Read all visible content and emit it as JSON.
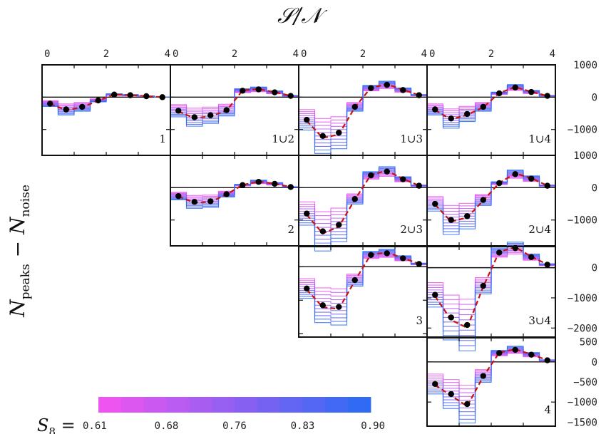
{
  "chart_data": {
    "type": "line",
    "xlabel": "𝒮/𝒩",
    "ylabel": {
      "base": "N",
      "sub1": "peaks",
      "mid": " − N",
      "sub2": "noise"
    },
    "xlim": [
      0,
      4
    ],
    "x_ticks": [
      "0",
      "2",
      "4"
    ],
    "x": [
      0.25,
      0.75,
      1.25,
      1.75,
      2.25,
      2.75,
      3.25,
      3.75
    ],
    "colorbar": {
      "label": "S",
      "label_sub": "8",
      "label_suffix": " =",
      "ticks": [
        "0.61",
        "0.68",
        "0.76",
        "0.83",
        "0.90"
      ],
      "color_min": "#ee55f0",
      "color_max": "#2f6bf4"
    },
    "legend": "none",
    "grid": false,
    "fiducial_color": "#cc1111",
    "data_color": "#000000",
    "panels": [
      {
        "label": "1",
        "row": 0,
        "col": 0,
        "ylim": [
          -1800,
          1000
        ],
        "values": [
          -200,
          -380,
          -300,
          -100,
          80,
          60,
          30,
          0
        ]
      },
      {
        "label": "1∪2",
        "row": 0,
        "col": 1,
        "ylim": [
          -1800,
          1000
        ],
        "values": [
          -420,
          -620,
          -560,
          -400,
          200,
          240,
          150,
          40
        ]
      },
      {
        "label": "1∪3",
        "row": 0,
        "col": 2,
        "ylim": [
          -1800,
          1000
        ],
        "values": [
          -700,
          -1200,
          -1100,
          -300,
          280,
          380,
          220,
          60
        ]
      },
      {
        "label": "1∪4",
        "row": 0,
        "col": 3,
        "ylim": [
          -1800,
          1000
        ],
        "values": [
          -380,
          -660,
          -520,
          -300,
          120,
          300,
          160,
          40
        ]
      },
      {
        "label": "2",
        "row": 1,
        "col": 1,
        "ylim": [
          -1800,
          1000
        ],
        "values": [
          -260,
          -440,
          -420,
          -200,
          80,
          180,
          120,
          20
        ]
      },
      {
        "label": "2∪3",
        "row": 1,
        "col": 2,
        "ylim": [
          -1800,
          1000
        ],
        "values": [
          -800,
          -1350,
          -1150,
          -350,
          380,
          500,
          260,
          60
        ]
      },
      {
        "label": "2∪4",
        "row": 1,
        "col": 3,
        "ylim": [
          -1800,
          1000
        ],
        "values": [
          -500,
          -1000,
          -880,
          -380,
          140,
          420,
          280,
          60
        ]
      },
      {
        "label": "3",
        "row": 2,
        "col": 2,
        "ylim": [
          -2100,
          600
        ],
        "values": [
          -650,
          -1150,
          -1200,
          -400,
          350,
          400,
          250,
          80
        ]
      },
      {
        "label": "3∪4",
        "row": 2,
        "col": 3,
        "ylim": [
          -2300,
          700
        ],
        "values": [
          -900,
          -1650,
          -1900,
          -600,
          500,
          650,
          350,
          100
        ]
      },
      {
        "label": "4",
        "row": 3,
        "col": 3,
        "ylim": [
          -1600,
          600
        ],
        "values": [
          -550,
          -800,
          -1050,
          -350,
          220,
          300,
          180,
          40
        ]
      }
    ],
    "right_axes": [
      {
        "row": 0,
        "ticks": [
          {
            "v": 1000,
            "t": "1000"
          },
          {
            "v": 0,
            "t": "0"
          },
          {
            "v": -1000,
            "t": "−1000"
          }
        ]
      },
      {
        "row": 1,
        "ticks": [
          {
            "v": 1000,
            "t": "1000"
          },
          {
            "v": 0,
            "t": "0"
          },
          {
            "v": -1000,
            "t": "−1000"
          }
        ]
      },
      {
        "row": 2,
        "ticks": [
          {
            "v": 0,
            "t": "0"
          },
          {
            "v": -1000,
            "t": "−1000"
          },
          {
            "v": -2000,
            "t": "−2000"
          }
        ]
      },
      {
        "row": 3,
        "ticks": [
          {
            "v": 500,
            "t": "500"
          },
          {
            "v": 0,
            "t": "0"
          },
          {
            "v": -500,
            "t": "−500"
          },
          {
            "v": -1000,
            "t": "−1000"
          },
          {
            "v": -1500,
            "t": "−1500"
          }
        ]
      }
    ]
  }
}
